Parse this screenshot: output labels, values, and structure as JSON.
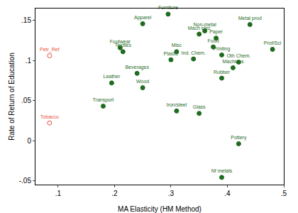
{
  "chart_data": {
    "type": "scatter",
    "x_label": "MA Elasticity (HM Method)",
    "y_label": "Rate of Return of Education",
    "xlim": [
      0.06,
      0.5
    ],
    "ylim": [
      -0.055,
      0.165
    ],
    "xticks": [
      {
        "value": 0.1,
        "label": ".1"
      },
      {
        "value": 0.2,
        "label": ".2"
      },
      {
        "value": 0.3,
        "label": ".3"
      },
      {
        "value": 0.4,
        "label": ".4"
      },
      {
        "value": 0.5,
        "label": ".5"
      }
    ],
    "yticks": [
      {
        "value": -0.05,
        "label": "-.05"
      },
      {
        "value": 0,
        "label": "0"
      },
      {
        "value": 0.05,
        "label": ".05"
      },
      {
        "value": 0.1,
        "label": ".1"
      },
      {
        "value": 0.15,
        "label": ".15"
      }
    ],
    "grid": false,
    "series": [
      {
        "color": "#1f6b1f",
        "marker": "circle",
        "labels": [
          "Furniture",
          "Apparel",
          "Metal prod",
          "Non-metal",
          "Mach elec",
          "Paper",
          "Footwear",
          "Textiles",
          "Food",
          "Prof/Sci",
          "Misc",
          "Printing",
          "Plastic",
          "Ind. Chem.",
          "Oth Chem.",
          "Machines",
          "Beverages",
          "Rubber",
          "Leather",
          "Wood",
          "Transport",
          "Iron/steel",
          "Glass",
          "Pottery",
          "Nf metals"
        ],
        "x": [
          0.295,
          0.25,
          0.44,
          0.36,
          0.35,
          0.38,
          0.21,
          0.215,
          0.375,
          0.48,
          0.31,
          0.39,
          0.3,
          0.34,
          0.42,
          0.41,
          0.24,
          0.39,
          0.195,
          0.25,
          0.18,
          0.31,
          0.35,
          0.42,
          0.39
        ],
        "values": [
          0.158,
          0.146,
          0.145,
          0.137,
          0.133,
          0.128,
          0.116,
          0.111,
          0.117,
          0.114,
          0.111,
          0.107,
          0.101,
          0.102,
          0.098,
          0.091,
          0.084,
          0.078,
          0.072,
          0.066,
          0.043,
          0.037,
          0.034,
          -0.004,
          -0.046
        ]
      },
      {
        "color": "#e8503a",
        "marker": "circle-open",
        "labels": [
          "Petr_Ref",
          "Tobacco"
        ],
        "x": [
          0.085,
          0.085
        ],
        "values": [
          0.106,
          0.022
        ]
      }
    ]
  }
}
